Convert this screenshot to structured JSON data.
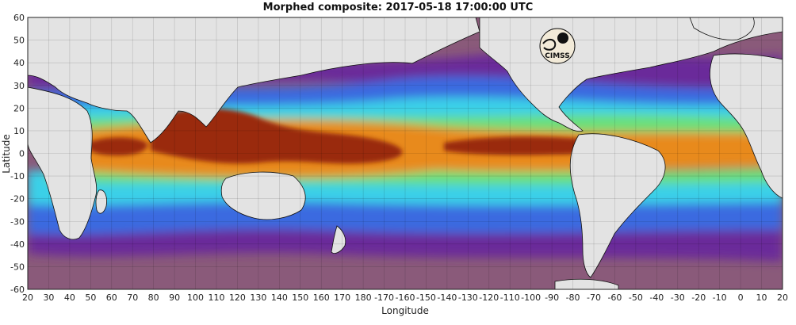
{
  "title": "Morphed composite: 2017-05-18 17:00:00 UTC",
  "x_axis": {
    "label": "Longitude",
    "ticks": [
      "20",
      "30",
      "40",
      "50",
      "60",
      "70",
      "80",
      "90",
      "100",
      "110",
      "120",
      "130",
      "140",
      "150",
      "160",
      "170",
      "180",
      "-170",
      "-160",
      "-150",
      "-140",
      "-130",
      "-120",
      "-110",
      "-100",
      "-90",
      "-80",
      "-70",
      "-60",
      "-50",
      "-40",
      "-30",
      "-20",
      "-10",
      "0",
      "10",
      "20"
    ]
  },
  "y_axis": {
    "label": "Latitude",
    "ticks": [
      "60",
      "50",
      "40",
      "30",
      "20",
      "10",
      "0",
      "-10",
      "-20",
      "-30",
      "-40",
      "-50",
      "-60"
    ]
  },
  "logo": {
    "text": "CIMSS"
  },
  "colors": {
    "land": "#e3e3e3",
    "coast": "#111111",
    "dry": "#8a5a7a",
    "moist_purple": "#6a2a9a",
    "moist_blue": "#3a6ae0",
    "moist_cyan": "#3ad0e8",
    "moist_green": "#6ae07a",
    "moist_orange": "#e88a1a",
    "moist_red": "#9a2a08"
  }
}
